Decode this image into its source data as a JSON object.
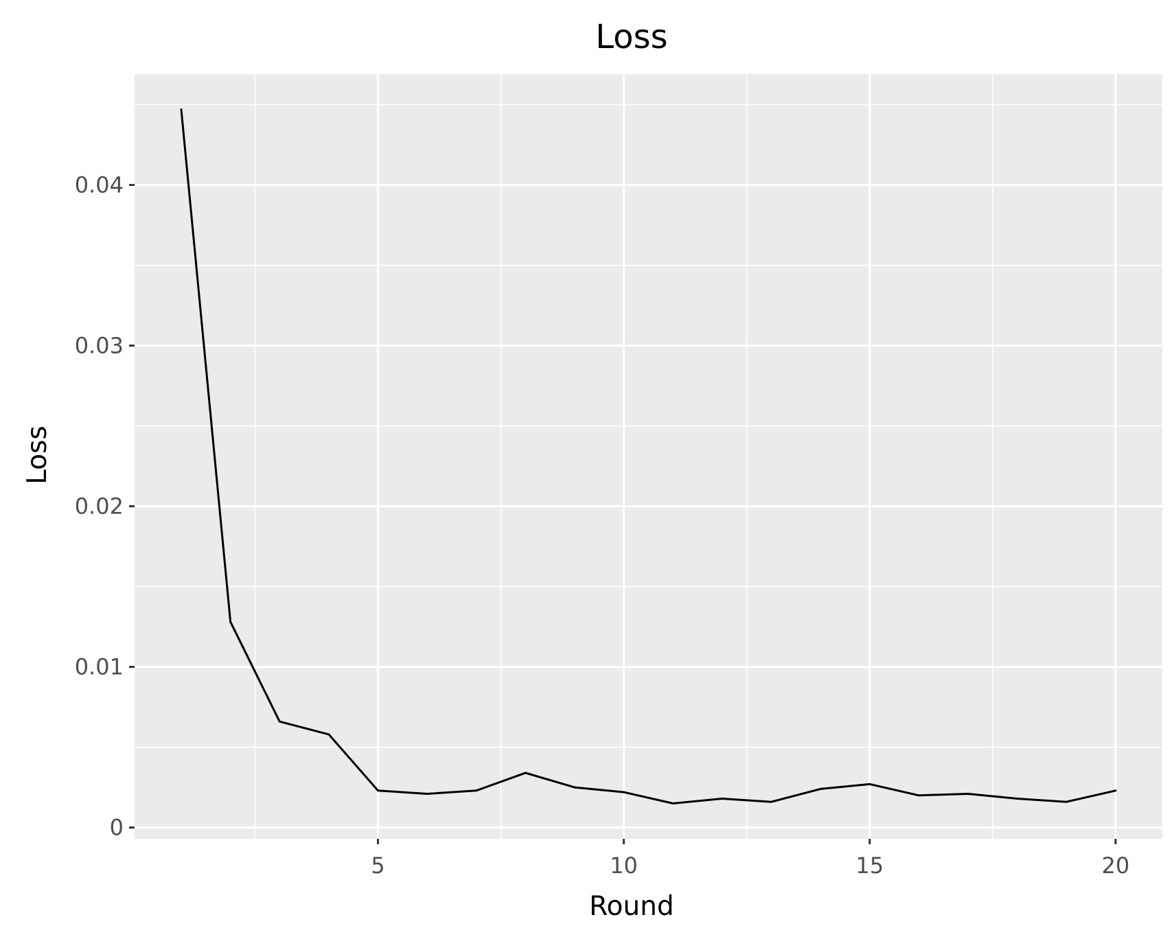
{
  "chart_data": {
    "type": "line",
    "title": "Loss",
    "xlabel": "Round",
    "ylabel": "Loss",
    "x": [
      1,
      2,
      3,
      4,
      5,
      6,
      7,
      8,
      9,
      10,
      11,
      12,
      13,
      14,
      15,
      16,
      17,
      18,
      19,
      20
    ],
    "series": [
      {
        "values": [
          0.0447,
          0.0128,
          0.0066,
          0.0058,
          0.0023,
          0.0021,
          0.0023,
          0.0034,
          0.0025,
          0.0022,
          0.0015,
          0.0018,
          0.0016,
          0.0024,
          0.0027,
          0.002,
          0.0021,
          0.0018,
          0.0016,
          0.0023
        ]
      }
    ],
    "xlim": [
      0.05,
      20.95
    ],
    "ylim": [
      -0.0007,
      0.0469
    ],
    "xticks": [
      5,
      10,
      15,
      20
    ],
    "xtick_labels": [
      "5",
      "10",
      "15",
      "20"
    ],
    "xminor": [
      2.5,
      7.5,
      12.5,
      17.5
    ],
    "yticks": [
      0,
      0.01,
      0.02,
      0.03,
      0.04
    ],
    "ytick_labels": [
      "0",
      "0.01",
      "0.02",
      "0.03",
      "0.04"
    ],
    "yminor": [
      0.005,
      0.015,
      0.025,
      0.035,
      0.045
    ],
    "grid": true,
    "legend": "none",
    "colors": {
      "panel_background": "#ebebeb",
      "grid": "#ffffff",
      "line": "#000000",
      "tick_text": "#4d4d4d",
      "tick_mark": "#333333"
    }
  }
}
